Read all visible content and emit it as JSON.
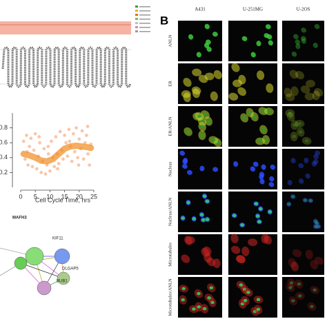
{
  "panel_b": {
    "label": "B",
    "columns": [
      "A431",
      "U-251MG",
      "U-2OS"
    ],
    "rows": [
      "ANLN",
      "ER",
      "ER/ANLN",
      "Nucleus",
      "Nucleus/ANLN",
      "Microtubules",
      "Microtubules/ANLN"
    ]
  },
  "chart_data": {
    "type": "scatter",
    "x_label": "Cell Cycle Time, hrs",
    "xlim": [
      0,
      25
    ],
    "xticks": [
      0,
      5,
      10,
      15,
      20,
      25
    ],
    "ylim": [
      0,
      1
    ],
    "yticks": [
      0.2,
      0.4,
      0.6,
      0.8
    ],
    "series": [
      {
        "color": "#f5b48c",
        "x": [
          1,
          1.5,
          2,
          2.5,
          3,
          3.5,
          4,
          4.5,
          5,
          5.5,
          6,
          6.5,
          7,
          7.5,
          8,
          8.5,
          9,
          9.5,
          10,
          10.5,
          11,
          11.5,
          12,
          12.5,
          13,
          13.5,
          14,
          14.5,
          15,
          15.5,
          16,
          16.5,
          17,
          17.5,
          18,
          18.5,
          19,
          19.5,
          20,
          20.5,
          21,
          21.5,
          22,
          22.5,
          23,
          23.5,
          24,
          2.2,
          6.3,
          9.4,
          12.6,
          16.7,
          19.8,
          22.9
        ],
        "y": [
          0.62,
          0.38,
          0.7,
          0.3,
          0.55,
          0.66,
          0.28,
          0.5,
          0.72,
          0.25,
          0.42,
          0.6,
          0.2,
          0.35,
          0.52,
          0.18,
          0.3,
          0.45,
          0.22,
          0.62,
          0.4,
          0.28,
          0.68,
          0.45,
          0.32,
          0.75,
          0.5,
          0.38,
          0.7,
          0.6,
          0.42,
          0.78,
          0.55,
          0.35,
          0.72,
          0.48,
          0.8,
          0.4,
          0.65,
          0.52,
          0.76,
          0.38,
          0.6,
          0.7,
          0.45,
          0.3,
          0.58,
          0.48,
          0.68,
          0.55,
          0.25,
          0.62,
          0.3,
          0.82
        ]
      },
      {
        "color": "#f08a1e",
        "x": [
          1,
          3,
          5,
          7,
          9,
          11,
          13,
          15,
          17,
          19,
          21,
          23,
          24
        ],
        "y": [
          0.45,
          0.43,
          0.4,
          0.36,
          0.35,
          0.38,
          0.45,
          0.52,
          0.55,
          0.56,
          0.55,
          0.54,
          0.53
        ]
      }
    ]
  },
  "network": {
    "title": "MAFH3",
    "nodes": [
      "KIF11",
      "DLGAP5",
      "BUB1"
    ]
  }
}
